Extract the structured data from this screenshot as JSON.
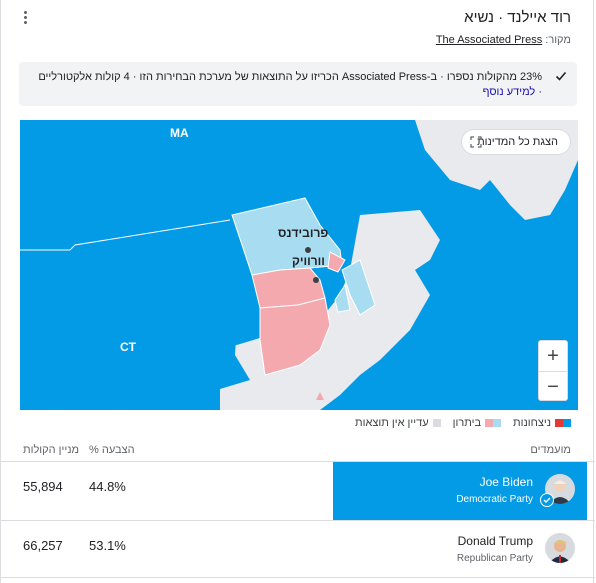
{
  "header": {
    "title": "רוד איילנד · נשיא",
    "source_label": "מקור:",
    "source_link": "The Associated Press"
  },
  "notice": {
    "text": "23% מהקולות נספרו · ב-Associated Press הכריזו על התוצאות של מערכת הבחירות הזו · 4 קולות אלקטורליים ·",
    "link": "למידע נוסף"
  },
  "map": {
    "show_all_button": "הצגת כל המדינות",
    "zoom_in": "+",
    "zoom_out": "−",
    "state_labels": {
      "ma": "MA",
      "ct": "CT"
    },
    "city_labels": {
      "providence": "פרובידנס",
      "warwick": "וורוויק"
    }
  },
  "legend": {
    "wins": "ניצחונות",
    "leading": "ביתרון",
    "no_results": "עדיין אין תוצאות"
  },
  "table": {
    "headers": {
      "candidates": "מועמדים",
      "percent": "% הצבעה",
      "votes": "מניין הקולות"
    },
    "rows": [
      {
        "name": "Joe Biden",
        "party": "Democratic Party",
        "percent": "44.8%",
        "votes": "55,894",
        "winner": true
      },
      {
        "name": "Donald Trump",
        "party": "Republican Party",
        "percent": "53.1%",
        "votes": "66,257",
        "winner": false
      }
    ]
  },
  "colors": {
    "dem_win": "#039be5",
    "dem_lead": "#a8dcf0",
    "rep_win": "#e53935",
    "rep_lead": "#f4a9ae",
    "no_results": "#e8eaed"
  }
}
